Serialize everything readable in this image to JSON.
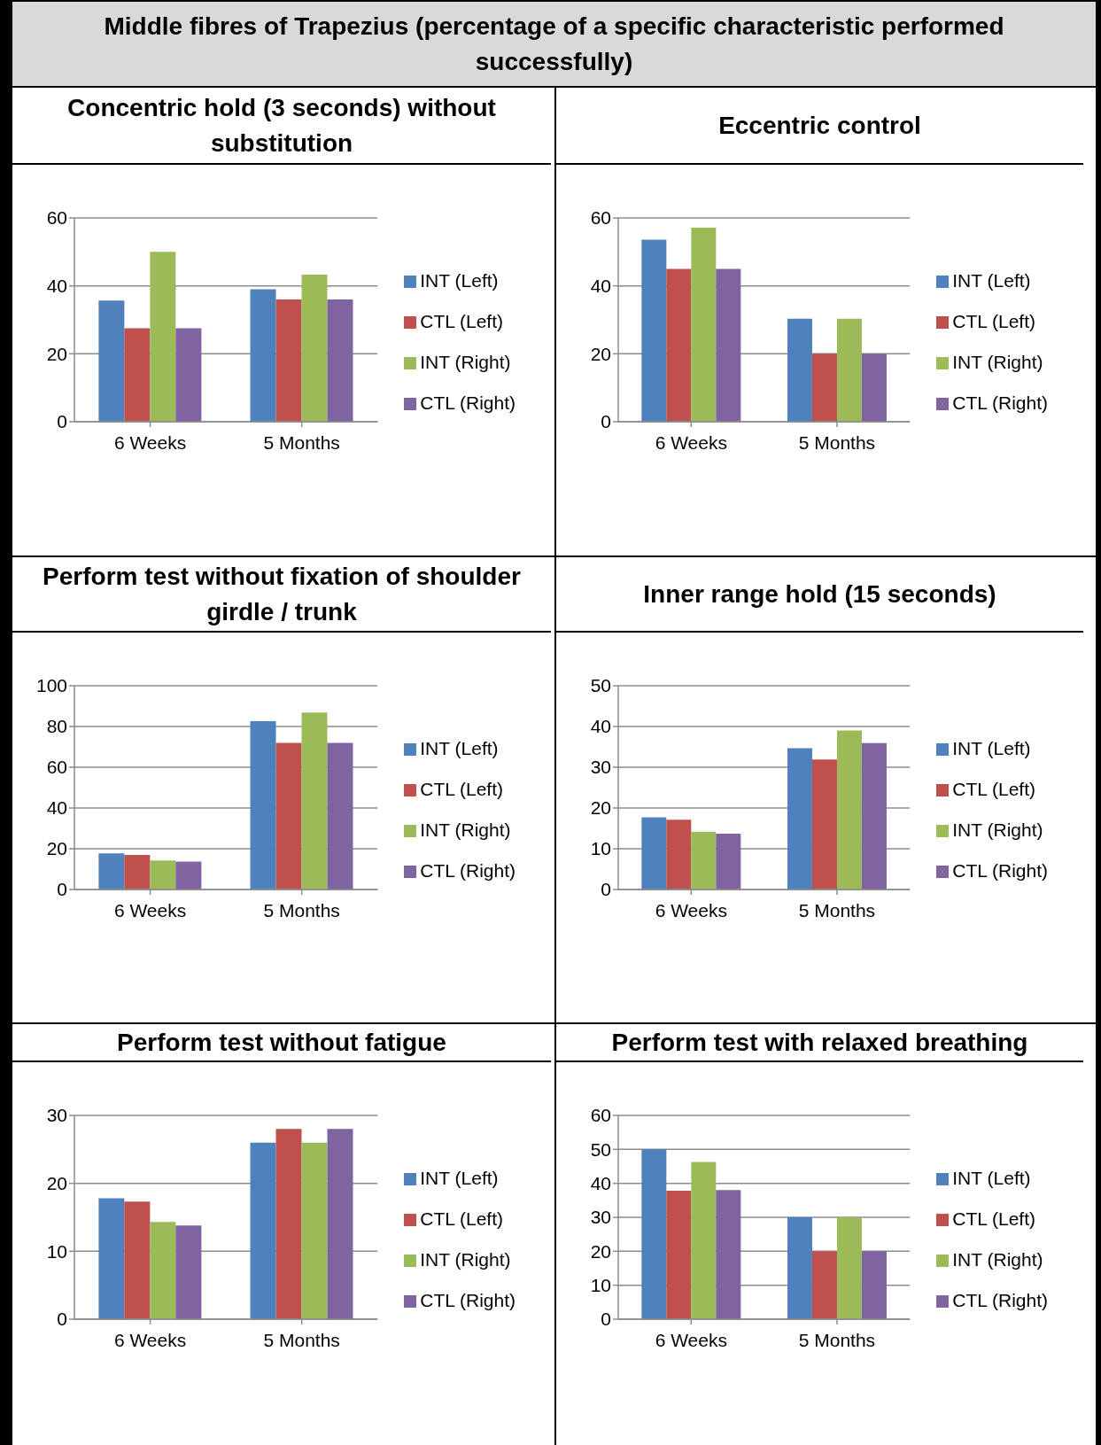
{
  "chart_data": [
    {
      "type": "other",
      "title": "Middle fibres of Trapezius (percentage of a specific characteristic performed successfully)"
    },
    {
      "type": "bar",
      "title": "Concentric hold (3 seconds) without substitution",
      "categories": [
        "6 Weeks",
        "5 Months"
      ],
      "ylim": [
        0,
        60
      ],
      "yticks": [
        0,
        20,
        40,
        60
      ],
      "grid": "y",
      "legend": "right",
      "series": [
        {
          "name": "INT (Left)",
          "color": "#4f81bd",
          "values": [
            35.7,
            39
          ]
        },
        {
          "name": "CTL (Left)",
          "color": "#c0504d",
          "values": [
            27.5,
            36
          ]
        },
        {
          "name": "INT (Right)",
          "color": "#9bbb59",
          "values": [
            50,
            43.3
          ]
        },
        {
          "name": "CTL (Right)",
          "color": "#8064a2",
          "values": [
            27.5,
            36
          ]
        }
      ]
    },
    {
      "type": "bar",
      "title": "Eccentric control",
      "categories": [
        "6 Weeks",
        "5 Months"
      ],
      "ylim": [
        0,
        60
      ],
      "yticks": [
        0,
        20,
        40,
        60
      ],
      "grid": "y",
      "legend": "right",
      "series": [
        {
          "name": "INT (Left)",
          "color": "#4f81bd",
          "values": [
            53.6,
            30.3
          ]
        },
        {
          "name": "CTL (Left)",
          "color": "#c0504d",
          "values": [
            45,
            20
          ]
        },
        {
          "name": "INT (Right)",
          "color": "#9bbb59",
          "values": [
            57.1,
            30.3
          ]
        },
        {
          "name": "CTL (Right)",
          "color": "#8064a2",
          "values": [
            45,
            20
          ]
        }
      ]
    },
    {
      "type": "bar",
      "title": "Perform test without fixation of shoulder girdle / trunk",
      "categories": [
        "6 Weeks",
        "5 Months"
      ],
      "ylim": [
        0,
        100
      ],
      "yticks": [
        0,
        20,
        40,
        60,
        80,
        100
      ],
      "grid": "y",
      "legend": "right",
      "series": [
        {
          "name": "INT (Left)",
          "color": "#4f81bd",
          "values": [
            17.7,
            82.6
          ]
        },
        {
          "name": "CTL (Left)",
          "color": "#c0504d",
          "values": [
            17,
            72
          ]
        },
        {
          "name": "INT (Right)",
          "color": "#9bbb59",
          "values": [
            14.2,
            86.9
          ]
        },
        {
          "name": "CTL (Right)",
          "color": "#8064a2",
          "values": [
            13.7,
            72
          ]
        }
      ]
    },
    {
      "type": "bar",
      "title": "Inner range hold (15 seconds)",
      "categories": [
        "6 Weeks",
        "5 Months"
      ],
      "ylim": [
        0,
        50
      ],
      "yticks": [
        0,
        10,
        20,
        30,
        40,
        50
      ],
      "grid": "y",
      "legend": "right",
      "series": [
        {
          "name": "INT (Left)",
          "color": "#4f81bd",
          "values": [
            17.7,
            34.7
          ]
        },
        {
          "name": "CTL (Left)",
          "color": "#c0504d",
          "values": [
            17.1,
            31.9
          ]
        },
        {
          "name": "INT (Right)",
          "color": "#9bbb59",
          "values": [
            14.2,
            39
          ]
        },
        {
          "name": "CTL (Right)",
          "color": "#8064a2",
          "values": [
            13.7,
            35.9
          ]
        }
      ]
    },
    {
      "type": "bar",
      "title": "Perform test without fatigue",
      "categories": [
        "6 Weeks",
        "5 Months"
      ],
      "ylim": [
        0,
        30
      ],
      "yticks": [
        0,
        10,
        20,
        30
      ],
      "grid": "y",
      "legend": "right",
      "series": [
        {
          "name": "INT (Left)",
          "color": "#4f81bd",
          "values": [
            17.8,
            26
          ]
        },
        {
          "name": "CTL (Left)",
          "color": "#c0504d",
          "values": [
            17.3,
            28
          ]
        },
        {
          "name": "INT (Right)",
          "color": "#9bbb59",
          "values": [
            14.3,
            26
          ]
        },
        {
          "name": "CTL (Right)",
          "color": "#8064a2",
          "values": [
            13.8,
            28
          ]
        }
      ]
    },
    {
      "type": "bar",
      "title": "Perform test with relaxed breathing",
      "categories": [
        "6 Weeks",
        "5 Months"
      ],
      "ylim": [
        0,
        60
      ],
      "yticks": [
        0,
        10,
        20,
        30,
        40,
        50,
        60
      ],
      "grid": "y",
      "legend": "right",
      "series": [
        {
          "name": "INT (Left)",
          "color": "#4f81bd",
          "values": [
            50,
            30
          ]
        },
        {
          "name": "CTL (Left)",
          "color": "#c0504d",
          "values": [
            37.8,
            20
          ]
        },
        {
          "name": "INT (Right)",
          "color": "#9bbb59",
          "values": [
            46.3,
            30
          ]
        },
        {
          "name": "CTL (Right)",
          "color": "#8064a2",
          "values": [
            38,
            20
          ]
        }
      ]
    }
  ]
}
